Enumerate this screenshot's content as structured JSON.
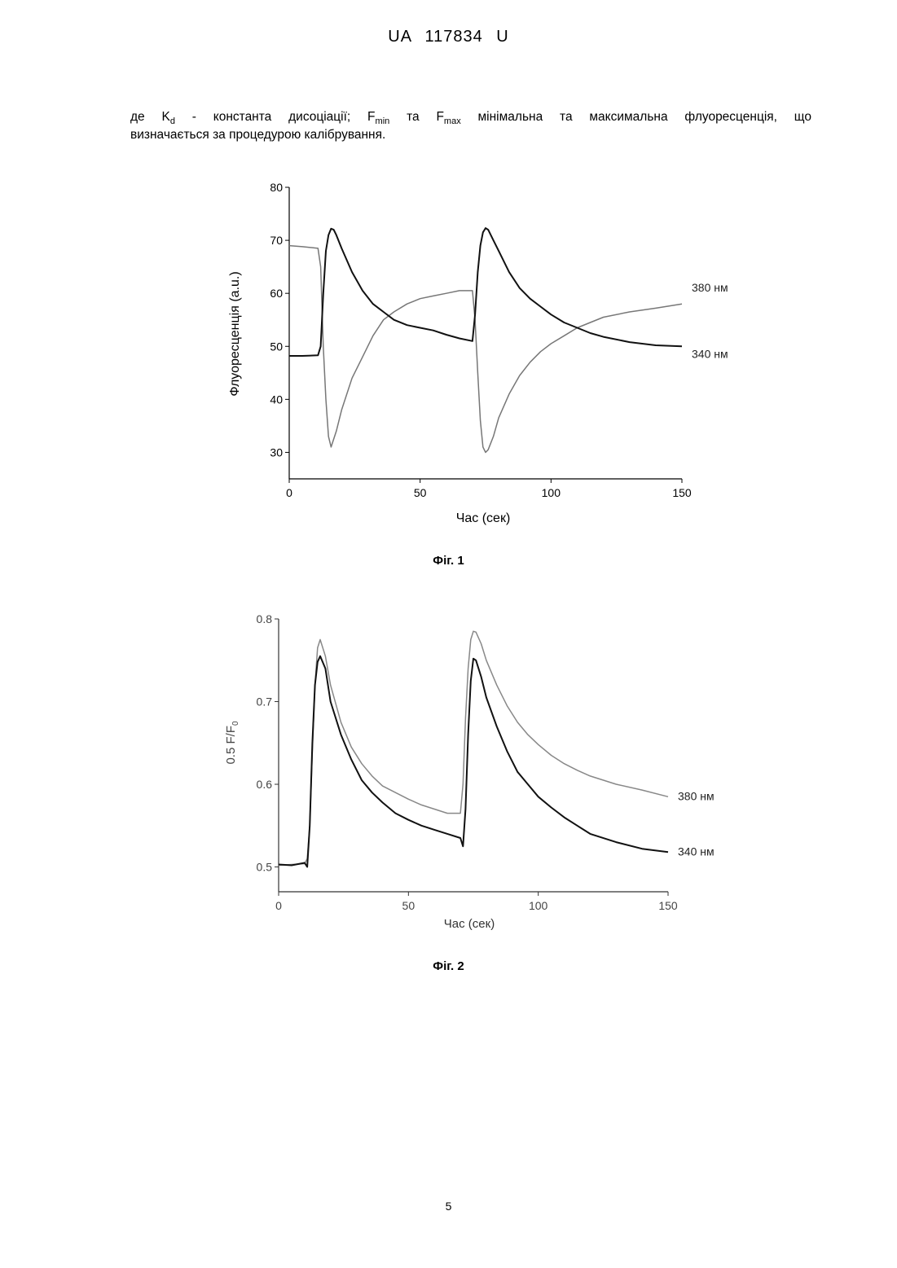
{
  "header": "UA   117834   U",
  "paragraph": {
    "de": "де K",
    "kd_sub": "d",
    "mid1": " - константа дисоціації; F",
    "min_sub": "min",
    "mid2": " та F",
    "max_sub": "max",
    "mid3": " мінімальна та максимальна флуоресценція, що",
    "line2": "визначається за процедурою калібрування."
  },
  "figures": [
    {
      "caption": "Фіг. 1",
      "chart_data": {
        "type": "line",
        "title": "",
        "xlabel": "Час (сек)",
        "ylabel": "Флуоресценція (a.u.)",
        "xlim": [
          0,
          150
        ],
        "ylim": [
          25,
          80
        ],
        "xticks": [
          "0",
          "50",
          "100",
          "150"
        ],
        "yticks": [
          "30",
          "40",
          "50",
          "60",
          "70",
          "80"
        ],
        "series": [
          {
            "name": "380 нм",
            "color": "#777777",
            "x": [
              0,
              5,
              11,
              12,
              13,
              14,
              15,
              16,
              18,
              20,
              24,
              28,
              32,
              36,
              40,
              45,
              50,
              55,
              60,
              65,
              70,
              71,
              72,
              73,
              74,
              75,
              76,
              78,
              80,
              84,
              88,
              92,
              96,
              100,
              105,
              110,
              115,
              120,
              130,
              140,
              150
            ],
            "y": [
              69,
              68.8,
              68.5,
              65,
              50,
              40,
              33,
              31,
              34,
              38,
              44,
              48,
              52,
              55,
              56.5,
              58,
              59,
              59.5,
              60,
              60.5,
              60.5,
              55,
              45,
              36,
              31,
              30,
              30.5,
              33,
              36.5,
              41,
              44.5,
              47,
              49,
              50.5,
              52,
              53.5,
              54.5,
              55.5,
              56.5,
              57.2,
              58
            ]
          },
          {
            "name": "340 нм",
            "color": "#111111",
            "x": [
              0,
              5,
              11,
              12,
              13,
              14,
              15,
              16,
              17,
              18,
              20,
              24,
              28,
              32,
              36,
              40,
              45,
              50,
              55,
              60,
              65,
              70,
              71,
              72,
              73,
              74,
              75,
              76,
              78,
              80,
              84,
              88,
              92,
              96,
              100,
              105,
              110,
              115,
              120,
              130,
              140,
              150
            ],
            "y": [
              48.2,
              48.2,
              48.3,
              50,
              60,
              68,
              71,
              72.2,
              72,
              71,
              68.5,
              64,
              60.5,
              58,
              56.5,
              55,
              54,
              53.5,
              53,
              52.2,
              51.5,
              51,
              56,
              64,
              69,
              71.5,
              72.3,
              72,
              70,
              68,
              64,
              61,
              59,
              57.5,
              56,
              54.5,
              53.5,
              52.5,
              51.8,
              50.8,
              50.2,
              50
            ]
          }
        ]
      }
    },
    {
      "caption": "Фіг. 2",
      "chart_data": {
        "type": "line",
        "title": "",
        "xlabel": "Час (сек)",
        "ylabel": "0.5 F/F",
        "ylabel_sub": "0",
        "xlim": [
          0,
          150
        ],
        "ylim": [
          0.47,
          0.8
        ],
        "xticks": [
          "0",
          "50",
          "100",
          "150"
        ],
        "yticks": [
          "0.5",
          "0.6",
          "0.7",
          "0.8"
        ],
        "series": [
          {
            "name": "380 нм",
            "color": "#888888",
            "x": [
              0,
              5,
              10,
              11,
              12,
              13,
              14,
              15,
              16,
              18,
              20,
              24,
              28,
              32,
              36,
              40,
              45,
              50,
              55,
              60,
              65,
              70,
              71,
              72,
              73,
              74,
              75,
              76,
              78,
              80,
              84,
              88,
              92,
              96,
              100,
              105,
              110,
              115,
              120,
              130,
              140,
              150
            ],
            "y": [
              0.502,
              0.503,
              0.504,
              0.51,
              0.55,
              0.64,
              0.72,
              0.765,
              0.775,
              0.755,
              0.72,
              0.675,
              0.645,
              0.625,
              0.61,
              0.598,
              0.59,
              0.582,
              0.575,
              0.57,
              0.565,
              0.565,
              0.6,
              0.68,
              0.74,
              0.775,
              0.785,
              0.784,
              0.77,
              0.75,
              0.72,
              0.695,
              0.675,
              0.66,
              0.648,
              0.635,
              0.625,
              0.617,
              0.61,
              0.6,
              0.593,
              0.585
            ]
          },
          {
            "name": "340 нм",
            "color": "#111111",
            "x": [
              0,
              5,
              10,
              11,
              12,
              13,
              14,
              15,
              16,
              18,
              20,
              24,
              28,
              32,
              36,
              40,
              45,
              50,
              55,
              60,
              65,
              70,
              71,
              72,
              73,
              74,
              75,
              76,
              78,
              80,
              84,
              88,
              92,
              96,
              100,
              105,
              110,
              115,
              120,
              130,
              140,
              150
            ],
            "y": [
              0.503,
              0.502,
              0.505,
              0.5,
              0.55,
              0.65,
              0.72,
              0.748,
              0.755,
              0.74,
              0.7,
              0.66,
              0.63,
              0.605,
              0.59,
              0.578,
              0.565,
              0.557,
              0.55,
              0.545,
              0.54,
              0.535,
              0.525,
              0.57,
              0.66,
              0.725,
              0.752,
              0.75,
              0.73,
              0.705,
              0.67,
              0.64,
              0.615,
              0.6,
              0.585,
              0.572,
              0.56,
              0.55,
              0.54,
              0.53,
              0.522,
              0.518
            ]
          }
        ]
      }
    }
  ],
  "page_number": "5"
}
